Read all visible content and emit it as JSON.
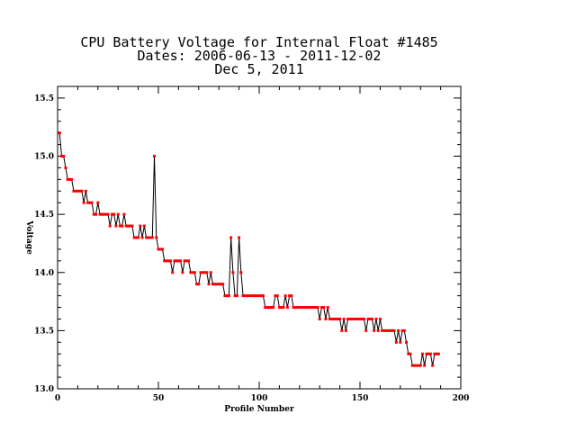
{
  "chart_data": {
    "type": "line",
    "title_lines": [
      "CPU Battery Voltage for Internal Float #1485",
      "Dates:  2006-06-13 -  2011-12-02",
      "Dec  5, 2011"
    ],
    "xlabel": "Profile Number",
    "ylabel": "Voltage",
    "xlim": [
      0,
      200
    ],
    "ylim": [
      13.0,
      15.6
    ],
    "xticks": [
      0,
      50,
      100,
      150,
      200
    ],
    "yticks": [
      13.0,
      13.5,
      14.0,
      14.5,
      15.0,
      15.5
    ],
    "xtick_labels": [
      "0",
      "50",
      "100",
      "150",
      "200"
    ],
    "ytick_labels": [
      "13.0",
      "13.5",
      "14.0",
      "14.5",
      "15.0",
      "15.5"
    ],
    "line_color": "#000000",
    "marker_color": "#ff0000",
    "series": [
      {
        "values": [
          15.2,
          15.0,
          15.0,
          14.9,
          14.8,
          14.8,
          14.8,
          14.7,
          14.7,
          14.7,
          14.7,
          14.7,
          14.6,
          14.7,
          14.6,
          14.6,
          14.6,
          14.5,
          14.5,
          14.6,
          14.5,
          14.5,
          14.5,
          14.5,
          14.5,
          14.4,
          14.5,
          14.5,
          14.4,
          14.5,
          14.4,
          14.4,
          14.5,
          14.4,
          14.4,
          14.4,
          14.4,
          14.3,
          14.3,
          14.3,
          14.4,
          14.3,
          14.4,
          14.3,
          14.3,
          14.3,
          14.3,
          15.0,
          14.3,
          14.2,
          14.2,
          14.2,
          14.1,
          14.1,
          14.1,
          14.1,
          14.0,
          14.1,
          14.1,
          14.1,
          14.1,
          14.0,
          14.1,
          14.1,
          14.1,
          14.0,
          14.0,
          14.0,
          13.9,
          13.9,
          14.0,
          14.0,
          14.0,
          14.0,
          13.9,
          14.0,
          13.9,
          13.9,
          13.9,
          13.9,
          13.9,
          13.9,
          13.8,
          13.8,
          13.8,
          14.3,
          14.0,
          13.8,
          13.8,
          14.3,
          14.0,
          13.8,
          13.8,
          13.8,
          13.8,
          13.8,
          13.8,
          13.8,
          13.8,
          13.8,
          13.8,
          13.8,
          13.7,
          13.7,
          13.7,
          13.7,
          13.7,
          13.8,
          13.8,
          13.7,
          13.7,
          13.7,
          13.8,
          13.7,
          13.8,
          13.8,
          13.7,
          13.7,
          13.7,
          13.7,
          13.7,
          13.7,
          13.7,
          13.7,
          13.7,
          13.7,
          13.7,
          13.7,
          13.7,
          13.6,
          13.7,
          13.7,
          13.6,
          13.7,
          13.6,
          13.6,
          13.6,
          13.6,
          13.6,
          13.6,
          13.5,
          13.6,
          13.5,
          13.6,
          13.6,
          13.6,
          13.6,
          13.6,
          13.6,
          13.6,
          13.6,
          13.6,
          13.5,
          13.6,
          13.6,
          13.6,
          13.5,
          13.6,
          13.5,
          13.6,
          13.5,
          13.5,
          13.5,
          13.5,
          13.5,
          13.5,
          13.5,
          13.4,
          13.5,
          13.4,
          13.5,
          13.5,
          13.4,
          13.3,
          13.3,
          13.2,
          13.2,
          13.2,
          13.2,
          13.2,
          13.3,
          13.2,
          13.3,
          13.3,
          13.3,
          13.2,
          13.3,
          13.3,
          13.3
        ]
      }
    ]
  }
}
